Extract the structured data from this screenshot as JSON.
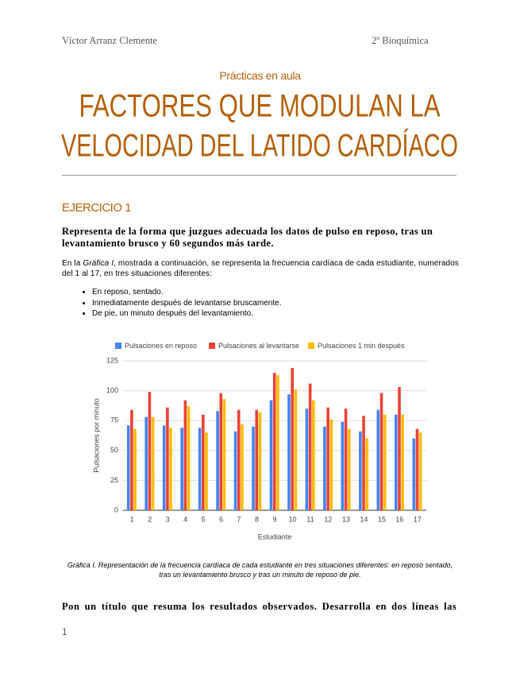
{
  "header": {
    "author": "Víctor Arranz Clemente",
    "course": "2º Bioquímica"
  },
  "subtitle": "Prácticas en aula",
  "title": [
    "FACTORES QUE MODULAN LA",
    "VELOCIDAD DEL LATIDO CARDÍACO"
  ],
  "section": "EJERCICIO 1",
  "question": "Representa de la forma que juzgues adecuada los datos de pulso en reposo, tras un levantamiento brusco y 60 segundos más tarde.",
  "intro": [
    "En la ",
    "Gráfica I",
    ", mostrada a continuación, se representa la frecuencia cardíaca de cada estudiante, numerados del 1 al 17, en tres situaciones diferentes:"
  ],
  "bullets": [
    "En reposo, sentado.",
    "Inmediatamente después de levantarse bruscamente.",
    "De pie, un minuto después del levantamiento."
  ],
  "chart_data": {
    "type": "bar",
    "categories": [
      "1",
      "2",
      "3",
      "4",
      "5",
      "6",
      "7",
      "8",
      "9",
      "10",
      "11",
      "12",
      "13",
      "14",
      "15",
      "16",
      "17"
    ],
    "series": [
      {
        "name": "Pulsaciones en reposo",
        "color": "#4285f4",
        "values": [
          71,
          78,
          71,
          69,
          69,
          83,
          66,
          70,
          92,
          97,
          85,
          70,
          74,
          66,
          84,
          80,
          60
        ]
      },
      {
        "name": "Pulsaciones al levantarse",
        "color": "#ea4335",
        "values": [
          84,
          99,
          86,
          92,
          80,
          98,
          84,
          84,
          115,
          119,
          106,
          86,
          85,
          79,
          98,
          103,
          68
        ]
      },
      {
        "name": "Pulsaciones 1 min después",
        "color": "#fbbc04",
        "values": [
          68,
          78,
          69,
          87,
          65,
          93,
          72,
          82,
          113,
          101,
          92,
          76,
          68,
          60,
          80,
          80,
          65
        ]
      }
    ],
    "ylim": [
      0,
      125
    ],
    "yticks": [
      0,
      25,
      50,
      75,
      100,
      125
    ],
    "y_label": "Pulsaciones por minuto",
    "x_label": "Estudiante",
    "grid": true,
    "legend": "top"
  },
  "caption": "Gráfica I. Representación de la frecuencia cardíaca de cada estudiante en tres situaciones diferentes: en reposo sentado, tras un levantamiento brusco y tras un minuto de reposo de pie.",
  "question2": "Pon un título que resuma los resultados observados. Desarrolla en dos líneas las",
  "page_number": "1"
}
